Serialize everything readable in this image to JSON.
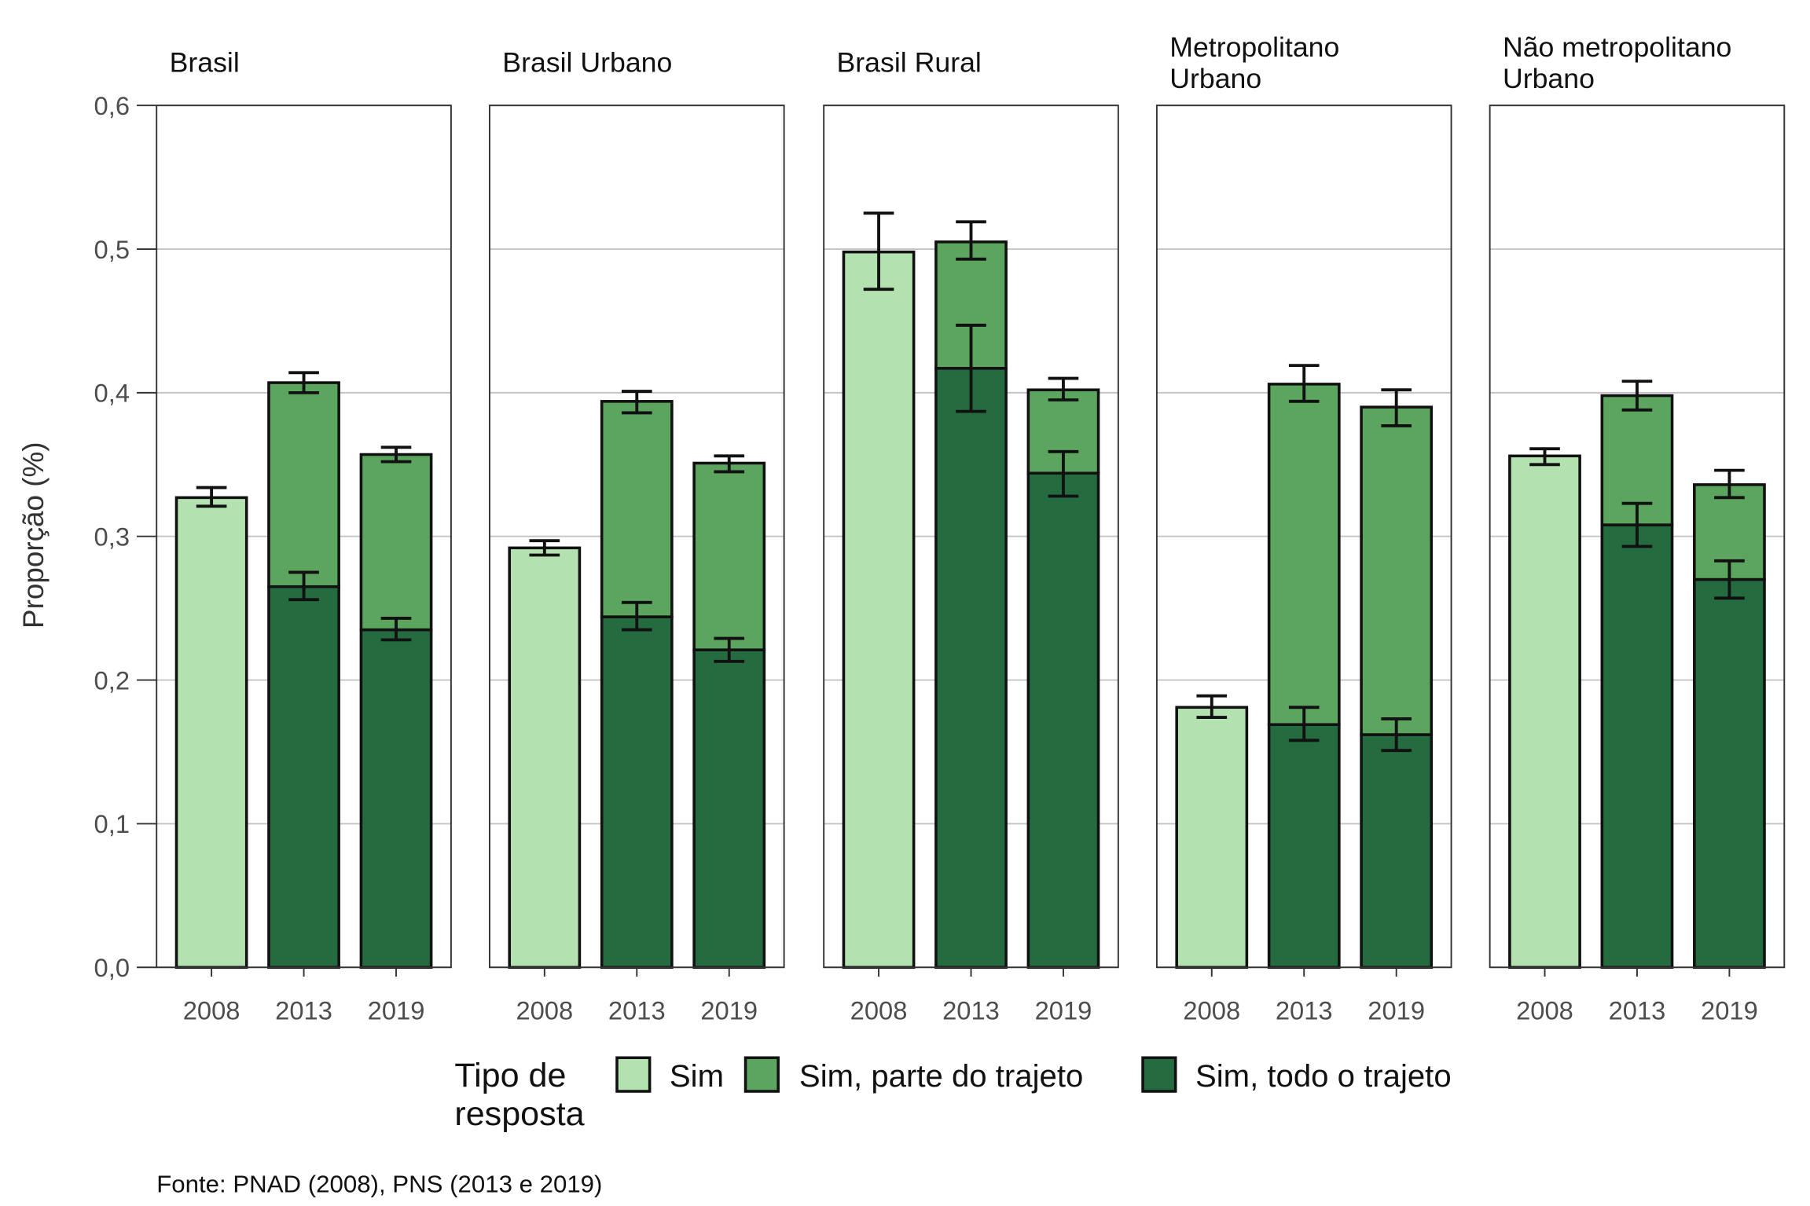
{
  "chart_data": {
    "type": "bar",
    "stacked": true,
    "grid": true,
    "legend_position": "bottom",
    "ylabel": "Proporção (%)",
    "ylim": [
      0,
      0.6
    ],
    "yticks": [
      "0,0",
      "0,1",
      "0,2",
      "0,3",
      "0,4",
      "0,5",
      "0,6"
    ],
    "categories": [
      "2008",
      "2013",
      "2019"
    ],
    "legend_title": [
      "Tipo de",
      "resposta"
    ],
    "series": [
      {
        "name": "Sim",
        "color": "#b4e1b0"
      },
      {
        "name": "Sim, parte do trajeto",
        "color": "#5ba55f"
      },
      {
        "name": "Sim, todo o trajeto",
        "color": "#246b3f"
      }
    ],
    "panels": [
      {
        "title": [
          "Brasil"
        ],
        "values": [
          [
            0.327,
            null,
            null
          ],
          [
            null,
            0.142,
            0.122
          ],
          [
            null,
            0.265,
            0.235
          ]
        ],
        "errors": [
          [
            [
              0.321,
              0.334
            ],
            null,
            null
          ],
          [
            null,
            [
              0.4,
              0.414
            ],
            [
              0.352,
              0.362
            ]
          ],
          [
            null,
            [
              0.256,
              0.275
            ],
            [
              0.228,
              0.243
            ]
          ]
        ]
      },
      {
        "title": [
          "Brasil Urbano"
        ],
        "values": [
          [
            0.292,
            null,
            null
          ],
          [
            null,
            0.15,
            0.13
          ],
          [
            null,
            0.244,
            0.221
          ]
        ],
        "errors": [
          [
            [
              0.287,
              0.297
            ],
            null,
            null
          ],
          [
            null,
            [
              0.386,
              0.401
            ],
            [
              0.345,
              0.356
            ]
          ],
          [
            null,
            [
              0.235,
              0.254
            ],
            [
              0.213,
              0.229
            ]
          ]
        ]
      },
      {
        "title": [
          "Brasil Rural"
        ],
        "values": [
          [
            0.498,
            null,
            null
          ],
          [
            null,
            0.088,
            0.058
          ],
          [
            null,
            0.417,
            0.344
          ]
        ],
        "errors": [
          [
            [
              0.472,
              0.525
            ],
            null,
            null
          ],
          [
            null,
            [
              0.493,
              0.519
            ],
            [
              0.395,
              0.41
            ]
          ],
          [
            null,
            [
              0.387,
              0.447
            ],
            [
              0.328,
              0.359
            ]
          ]
        ]
      },
      {
        "title": [
          "Metropolitano",
          "Urbano"
        ],
        "values": [
          [
            0.181,
            null,
            null
          ],
          [
            null,
            0.237,
            0.228
          ],
          [
            null,
            0.169,
            0.162
          ]
        ],
        "errors": [
          [
            [
              0.174,
              0.189
            ],
            null,
            null
          ],
          [
            null,
            [
              0.394,
              0.419
            ],
            [
              0.377,
              0.402
            ]
          ],
          [
            null,
            [
              0.158,
              0.181
            ],
            [
              0.151,
              0.173
            ]
          ]
        ]
      },
      {
        "title": [
          "Não metropolitano",
          "Urbano"
        ],
        "values": [
          [
            0.356,
            null,
            null
          ],
          [
            null,
            0.09,
            0.066
          ],
          [
            null,
            0.308,
            0.27
          ]
        ],
        "errors": [
          [
            [
              0.35,
              0.361
            ],
            null,
            null
          ],
          [
            null,
            [
              0.388,
              0.408
            ],
            [
              0.327,
              0.346
            ]
          ],
          [
            null,
            [
              0.293,
              0.323
            ],
            [
              0.257,
              0.283
            ]
          ]
        ]
      }
    ]
  },
  "source": "Fonte: PNAD (2008), PNS (2013 e 2019)"
}
